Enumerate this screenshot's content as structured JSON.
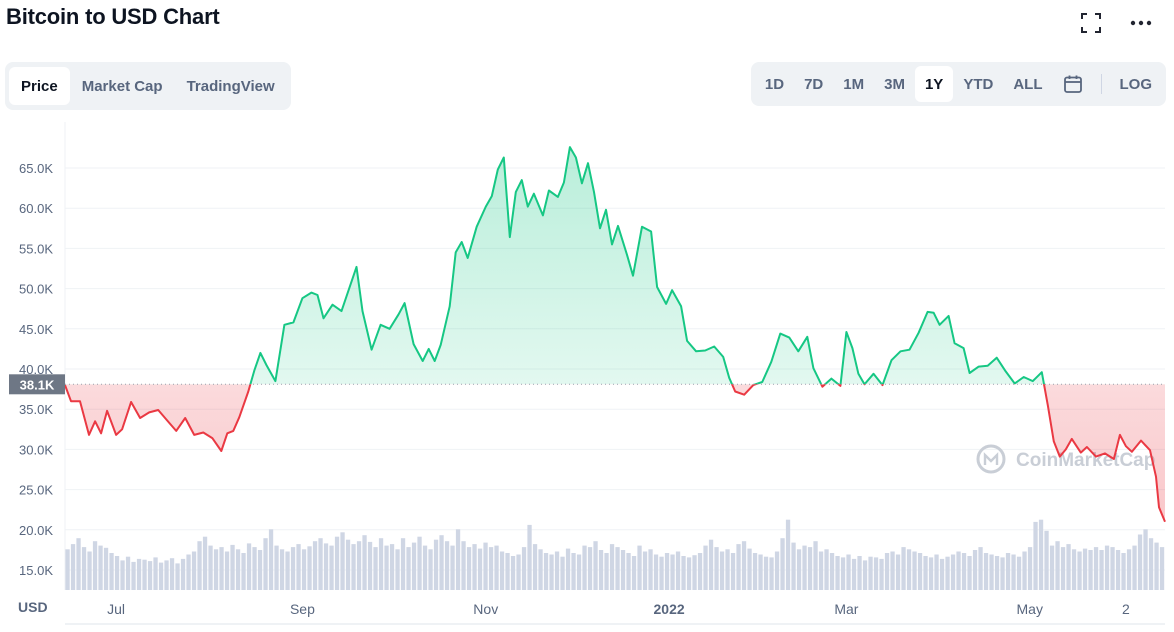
{
  "header": {
    "title": "Bitcoin to USD Chart",
    "expand_icon": "expand-icon",
    "more_icon": "more-horizontal-icon"
  },
  "tabs": [
    {
      "label": "Price",
      "active": true
    },
    {
      "label": "Market Cap",
      "active": false
    },
    {
      "label": "TradingView",
      "active": false
    }
  ],
  "ranges": [
    {
      "label": "1D",
      "active": false
    },
    {
      "label": "7D",
      "active": false
    },
    {
      "label": "1M",
      "active": false
    },
    {
      "label": "3M",
      "active": false
    },
    {
      "label": "1Y",
      "active": true
    },
    {
      "label": "YTD",
      "active": false
    },
    {
      "label": "ALL",
      "active": false
    }
  ],
  "calendar_icon": "calendar-icon",
  "log_label": "LOG",
  "watermark": "CoinMarketCap",
  "colors": {
    "up": "#16c784",
    "down": "#ea3943",
    "axis_text": "#58667e"
  },
  "chart_data": {
    "type": "area",
    "title": "Bitcoin to USD Chart",
    "currency_label": "USD",
    "baseline_value": 38100,
    "baseline_label": "38.1K",
    "ylim": [
      13000,
      70000
    ],
    "yticks": [
      15000,
      20000,
      25000,
      30000,
      35000,
      40000,
      45000,
      50000,
      55000,
      60000,
      65000
    ],
    "ytick_labels": [
      "15.0K",
      "20.0K",
      "25.0K",
      "30.0K",
      "35.0K",
      "40.0K",
      "45.0K",
      "50.0K",
      "55.0K",
      "60.0K",
      "65.0K"
    ],
    "xlim": [
      "2021-06-14",
      "2022-06-15"
    ],
    "xticks": [
      {
        "date": "2021-07-01",
        "label": "Jul"
      },
      {
        "date": "2021-09-01",
        "label": "Sep"
      },
      {
        "date": "2021-11-01",
        "label": "Nov"
      },
      {
        "date": "2022-01-01",
        "label": "2022"
      },
      {
        "date": "2022-03-01",
        "label": "Mar"
      },
      {
        "date": "2022-05-01",
        "label": "May"
      },
      {
        "date": "2022-06-02",
        "label": "2"
      }
    ],
    "grid": true,
    "series": [
      {
        "points": [
          [
            "2021-06-14",
            38000
          ],
          [
            "2021-06-16",
            36000
          ],
          [
            "2021-06-19",
            36000
          ],
          [
            "2021-06-22",
            31800
          ],
          [
            "2021-06-24",
            33500
          ],
          [
            "2021-06-26",
            32000
          ],
          [
            "2021-06-28",
            34800
          ],
          [
            "2021-07-01",
            31800
          ],
          [
            "2021-07-03",
            32500
          ],
          [
            "2021-07-06",
            35900
          ],
          [
            "2021-07-09",
            33900
          ],
          [
            "2021-07-12",
            34600
          ],
          [
            "2021-07-15",
            34900
          ],
          [
            "2021-07-18",
            33600
          ],
          [
            "2021-07-21",
            32300
          ],
          [
            "2021-07-24",
            33900
          ],
          [
            "2021-07-27",
            31800
          ],
          [
            "2021-07-30",
            32100
          ],
          [
            "2021-08-02",
            31400
          ],
          [
            "2021-08-05",
            29800
          ],
          [
            "2021-08-07",
            32000
          ],
          [
            "2021-08-09",
            32300
          ],
          [
            "2021-08-11",
            34000
          ],
          [
            "2021-08-14",
            37200
          ],
          [
            "2021-08-16",
            39800
          ],
          [
            "2021-08-18",
            42000
          ],
          [
            "2021-08-20",
            40500
          ],
          [
            "2021-08-23",
            38500
          ],
          [
            "2021-08-26",
            45500
          ],
          [
            "2021-08-29",
            45800
          ],
          [
            "2021-09-01",
            48800
          ],
          [
            "2021-09-04",
            49500
          ],
          [
            "2021-09-06",
            49200
          ],
          [
            "2021-09-08",
            46300
          ],
          [
            "2021-09-11",
            48000
          ],
          [
            "2021-09-14",
            47200
          ],
          [
            "2021-09-17",
            50500
          ],
          [
            "2021-09-19",
            52700
          ],
          [
            "2021-09-21",
            47200
          ],
          [
            "2021-09-24",
            42400
          ],
          [
            "2021-09-27",
            45500
          ],
          [
            "2021-09-30",
            45000
          ],
          [
            "2021-10-03",
            46800
          ],
          [
            "2021-10-05",
            48200
          ],
          [
            "2021-10-08",
            43100
          ],
          [
            "2021-10-11",
            41000
          ],
          [
            "2021-10-13",
            42500
          ],
          [
            "2021-10-15",
            41000
          ],
          [
            "2021-10-17",
            43000
          ],
          [
            "2021-10-20",
            47800
          ],
          [
            "2021-10-22",
            54500
          ],
          [
            "2021-10-24",
            55800
          ],
          [
            "2021-10-26",
            53800
          ],
          [
            "2021-10-29",
            57700
          ],
          [
            "2021-11-01",
            60200
          ],
          [
            "2021-11-03",
            61500
          ],
          [
            "2021-11-05",
            64800
          ],
          [
            "2021-11-07",
            66300
          ],
          [
            "2021-11-09",
            56400
          ],
          [
            "2021-11-11",
            62000
          ],
          [
            "2021-11-13",
            63500
          ],
          [
            "2021-11-15",
            60200
          ],
          [
            "2021-11-17",
            61800
          ],
          [
            "2021-11-20",
            59100
          ],
          [
            "2021-11-22",
            62200
          ],
          [
            "2021-11-25",
            61400
          ],
          [
            "2021-11-27",
            63200
          ],
          [
            "2021-11-29",
            67600
          ],
          [
            "2021-12-01",
            66300
          ],
          [
            "2021-12-03",
            63100
          ],
          [
            "2021-12-05",
            65600
          ],
          [
            "2021-12-07",
            62000
          ],
          [
            "2021-12-09",
            57500
          ],
          [
            "2021-12-11",
            59800
          ],
          [
            "2021-12-13",
            55500
          ],
          [
            "2021-12-15",
            57800
          ],
          [
            "2021-12-18",
            54200
          ],
          [
            "2021-12-20",
            51600
          ],
          [
            "2021-12-23",
            57700
          ],
          [
            "2021-12-26",
            57100
          ],
          [
            "2021-12-28",
            50200
          ],
          [
            "2021-12-31",
            48100
          ],
          [
            "2022-01-02",
            49800
          ],
          [
            "2022-01-05",
            47800
          ],
          [
            "2022-01-07",
            43500
          ],
          [
            "2022-01-10",
            42200
          ],
          [
            "2022-01-13",
            42300
          ],
          [
            "2022-01-16",
            42800
          ],
          [
            "2022-01-19",
            41500
          ],
          [
            "2022-01-21",
            38900
          ],
          [
            "2022-01-23",
            37200
          ],
          [
            "2022-01-26",
            36800
          ],
          [
            "2022-01-29",
            38000
          ],
          [
            "2022-02-01",
            38400
          ],
          [
            "2022-02-04",
            40900
          ],
          [
            "2022-02-07",
            44400
          ],
          [
            "2022-02-10",
            43900
          ],
          [
            "2022-02-13",
            42200
          ],
          [
            "2022-02-16",
            44000
          ],
          [
            "2022-02-18",
            40100
          ],
          [
            "2022-02-21",
            37800
          ],
          [
            "2022-02-24",
            38800
          ],
          [
            "2022-02-27",
            37900
          ],
          [
            "2022-03-01",
            44600
          ],
          [
            "2022-03-03",
            42600
          ],
          [
            "2022-03-05",
            39400
          ],
          [
            "2022-03-07",
            38100
          ],
          [
            "2022-03-10",
            39400
          ],
          [
            "2022-03-13",
            38000
          ],
          [
            "2022-03-16",
            41100
          ],
          [
            "2022-03-19",
            42200
          ],
          [
            "2022-03-22",
            42400
          ],
          [
            "2022-03-25",
            44500
          ],
          [
            "2022-03-28",
            47100
          ],
          [
            "2022-03-30",
            47000
          ],
          [
            "2022-04-01",
            45500
          ],
          [
            "2022-04-04",
            46600
          ],
          [
            "2022-04-06",
            43200
          ],
          [
            "2022-04-09",
            42600
          ],
          [
            "2022-04-11",
            39500
          ],
          [
            "2022-04-14",
            40300
          ],
          [
            "2022-04-17",
            40400
          ],
          [
            "2022-04-20",
            41400
          ],
          [
            "2022-04-23",
            39700
          ],
          [
            "2022-04-26",
            38200
          ],
          [
            "2022-04-29",
            39000
          ],
          [
            "2022-05-02",
            38500
          ],
          [
            "2022-05-05",
            39600
          ],
          [
            "2022-05-07",
            35500
          ],
          [
            "2022-05-09",
            31000
          ],
          [
            "2022-05-11",
            29100
          ],
          [
            "2022-05-13",
            30000
          ],
          [
            "2022-05-15",
            31300
          ],
          [
            "2022-05-18",
            29600
          ],
          [
            "2022-05-20",
            30300
          ],
          [
            "2022-05-23",
            29100
          ],
          [
            "2022-05-26",
            29500
          ],
          [
            "2022-05-29",
            28800
          ],
          [
            "2022-05-31",
            31800
          ],
          [
            "2022-06-02",
            30400
          ],
          [
            "2022-06-04",
            29700
          ],
          [
            "2022-06-07",
            31100
          ],
          [
            "2022-06-10",
            29900
          ],
          [
            "2022-06-12",
            26600
          ],
          [
            "2022-06-13",
            22800
          ],
          [
            "2022-06-15",
            21000
          ]
        ]
      }
    ],
    "volume": {
      "label": "volume",
      "relative_values": [
        0.55,
        0.62,
        0.7,
        0.58,
        0.52,
        0.66,
        0.6,
        0.57,
        0.5,
        0.46,
        0.4,
        0.45,
        0.38,
        0.42,
        0.41,
        0.39,
        0.44,
        0.37,
        0.4,
        0.43,
        0.36,
        0.42,
        0.48,
        0.52,
        0.66,
        0.72,
        0.6,
        0.55,
        0.58,
        0.52,
        0.61,
        0.55,
        0.5,
        0.63,
        0.58,
        0.54,
        0.7,
        0.82,
        0.6,
        0.55,
        0.52,
        0.58,
        0.62,
        0.55,
        0.59,
        0.66,
        0.7,
        0.63,
        0.6,
        0.72,
        0.78,
        0.68,
        0.62,
        0.66,
        0.74,
        0.65,
        0.58,
        0.7,
        0.6,
        0.62,
        0.55,
        0.7,
        0.58,
        0.64,
        0.72,
        0.6,
        0.55,
        0.68,
        0.74,
        0.66,
        0.6,
        0.82,
        0.66,
        0.58,
        0.62,
        0.56,
        0.64,
        0.58,
        0.6,
        0.52,
        0.5,
        0.46,
        0.48,
        0.58,
        0.88,
        0.62,
        0.55,
        0.5,
        0.48,
        0.52,
        0.45,
        0.56,
        0.5,
        0.48,
        0.6,
        0.58,
        0.66,
        0.54,
        0.5,
        0.62,
        0.58,
        0.54,
        0.5,
        0.46,
        0.6,
        0.52,
        0.55,
        0.48,
        0.45,
        0.5,
        0.48,
        0.52,
        0.46,
        0.44,
        0.47,
        0.5,
        0.6,
        0.68,
        0.58,
        0.52,
        0.55,
        0.5,
        0.62,
        0.66,
        0.56,
        0.5,
        0.48,
        0.45,
        0.44,
        0.52,
        0.7,
        0.95,
        0.64,
        0.55,
        0.6,
        0.58,
        0.66,
        0.52,
        0.55,
        0.5,
        0.46,
        0.44,
        0.48,
        0.42,
        0.46,
        0.4,
        0.45,
        0.44,
        0.42,
        0.5,
        0.52,
        0.48,
        0.58,
        0.55,
        0.52,
        0.5,
        0.46,
        0.44,
        0.48,
        0.42,
        0.45,
        0.48,
        0.52,
        0.5,
        0.46,
        0.54,
        0.58,
        0.5,
        0.48,
        0.46,
        0.44,
        0.5,
        0.48,
        0.45,
        0.52,
        0.58,
        0.92,
        0.95,
        0.8,
        0.6,
        0.66,
        0.58,
        0.62,
        0.55,
        0.52,
        0.56,
        0.54,
        0.58,
        0.54,
        0.6,
        0.58,
        0.54,
        0.5,
        0.55,
        0.6,
        0.75,
        0.82,
        0.7,
        0.64,
        0.58
      ]
    }
  }
}
